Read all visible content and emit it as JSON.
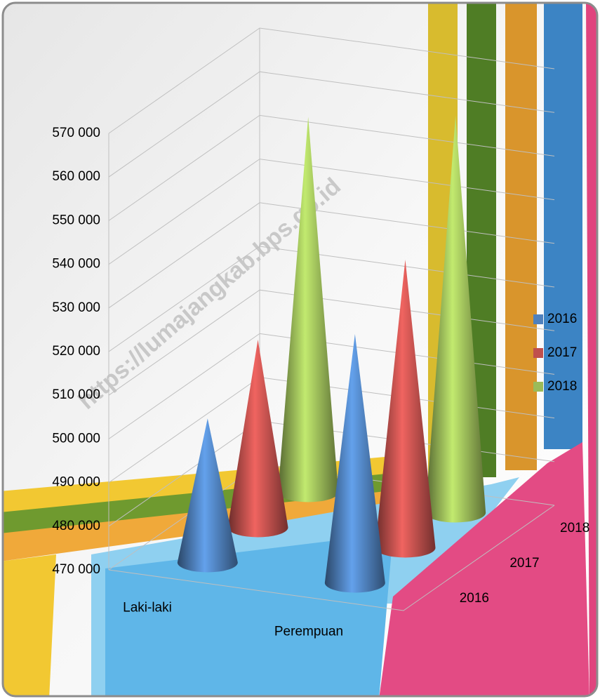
{
  "chart_data": {
    "type": "cone3d",
    "categories": [
      "Laki-laki",
      "Perempuan"
    ],
    "series": [
      {
        "name": "2016",
        "color": "#4f81bd",
        "values": [
          503000,
          527000
        ]
      },
      {
        "name": "2017",
        "color": "#c0504d",
        "values": [
          513000,
          536000
        ]
      },
      {
        "name": "2018",
        "color": "#9bbb59",
        "values": [
          556000,
          561000
        ]
      }
    ],
    "ylim": [
      470000,
      570000
    ],
    "yticks": [
      {
        "value": 470000,
        "label": "470 000"
      },
      {
        "value": 480000,
        "label": "480 000"
      },
      {
        "value": 490000,
        "label": "490 000"
      },
      {
        "value": 500000,
        "label": "500 000"
      },
      {
        "value": 510000,
        "label": "510 000"
      },
      {
        "value": 520000,
        "label": "520 000"
      },
      {
        "value": 530000,
        "label": "530 000"
      },
      {
        "value": 540000,
        "label": "540 000"
      },
      {
        "value": 550000,
        "label": "550 000"
      },
      {
        "value": 560000,
        "label": "560 000"
      },
      {
        "value": 570000,
        "label": "570 000"
      }
    ],
    "grid": true,
    "legend": "right",
    "watermark": "https://lumajangkab.bps.go.id"
  }
}
